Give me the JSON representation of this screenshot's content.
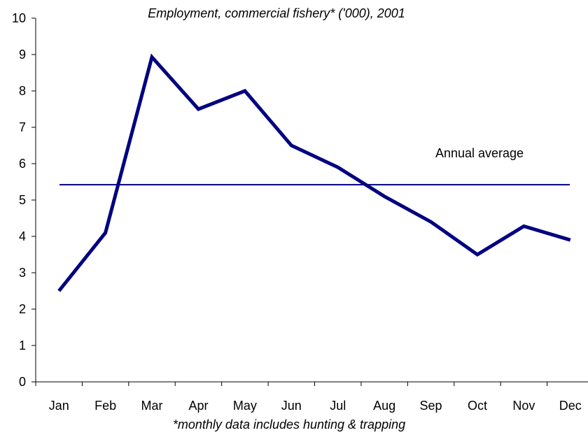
{
  "chart_data": {
    "type": "line",
    "title": "Employment, commercial fishery* ('000), 2001",
    "footnote": "*monthly data includes hunting & trapping",
    "categories": [
      "Jan",
      "Feb",
      "Mar",
      "Apr",
      "May",
      "Jun",
      "Jul",
      "Aug",
      "Sep",
      "Oct",
      "Nov",
      "Dec"
    ],
    "series": [
      {
        "values": [
          2.5,
          4.1,
          8.93,
          7.5,
          8.0,
          6.5,
          5.9,
          5.1,
          4.4,
          3.5,
          4.28,
          3.9
        ],
        "color": "#000080"
      }
    ],
    "reference_line": {
      "label": "Annual average",
      "value": 5.42,
      "color": "#000080"
    },
    "ylim": [
      0,
      10
    ],
    "yticks": [
      "0",
      "1",
      "2",
      "3",
      "4",
      "5",
      "6",
      "7",
      "8",
      "9",
      "10"
    ],
    "grid": false,
    "legend": "none"
  }
}
